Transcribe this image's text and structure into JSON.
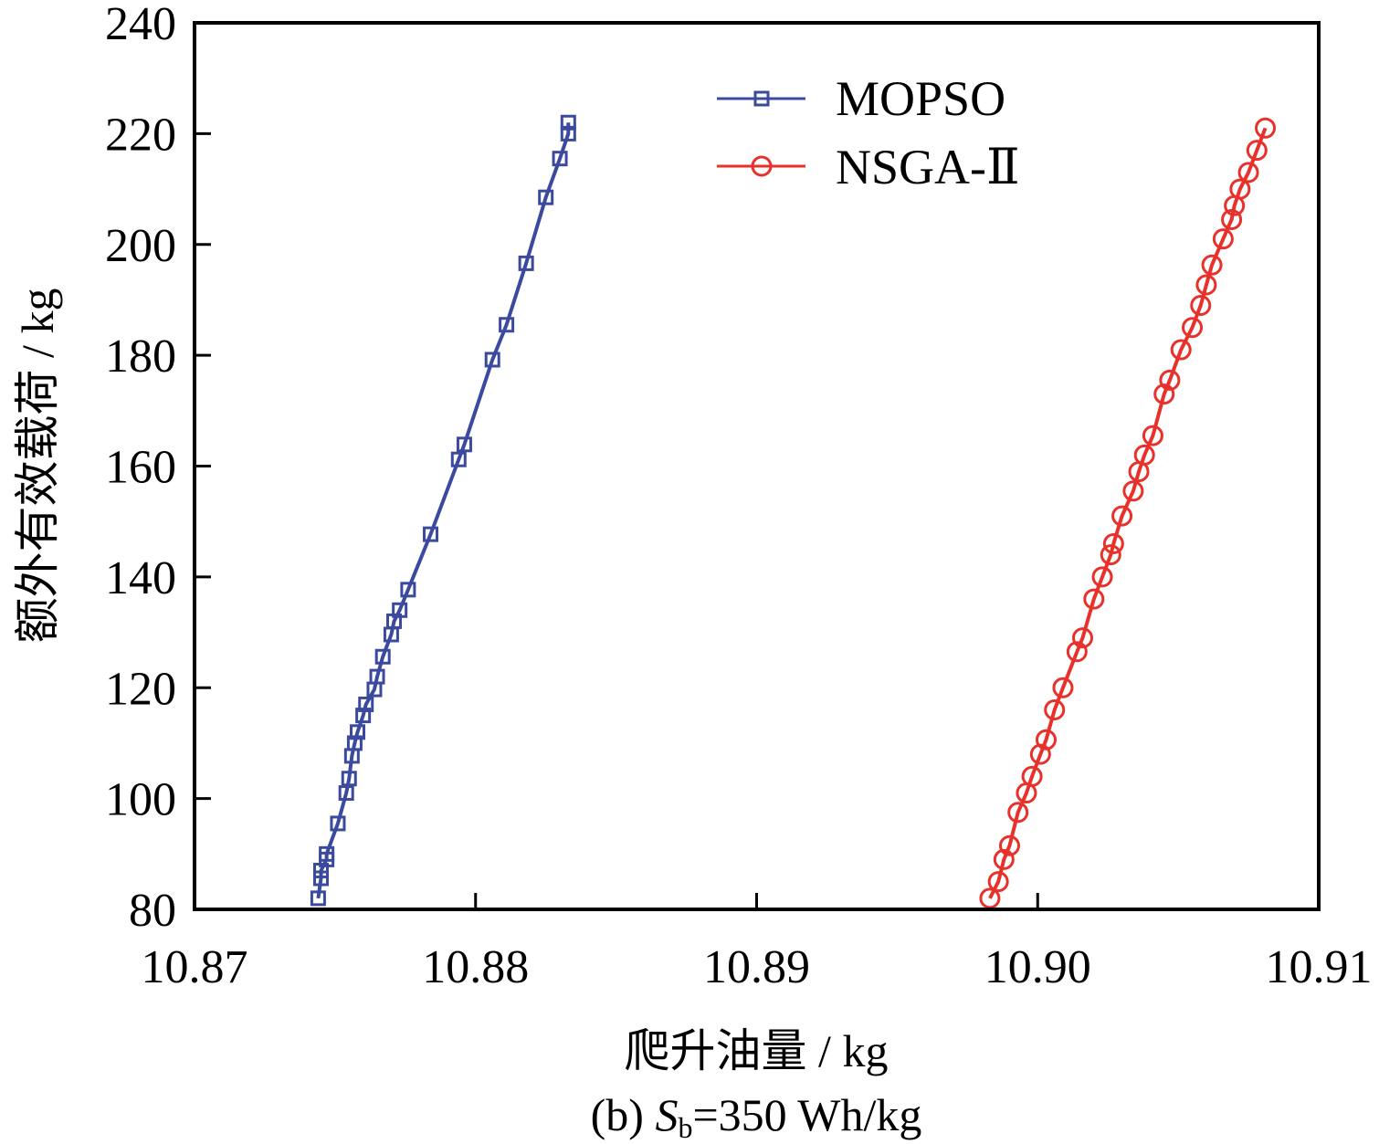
{
  "chart_data": {
    "type": "line",
    "title": "",
    "caption": {
      "prefix": "(b) ",
      "symbol": "S",
      "subscript": "b",
      "suffix": "=350 Wh/kg"
    },
    "xlabel": "爬升油量 / kg",
    "ylabel": "额外有效载荷 / kg",
    "xlim": [
      10.87,
      10.91
    ],
    "ylim": [
      80,
      240
    ],
    "xticks": [
      "10.87",
      "10.88",
      "10.89",
      "10.90",
      "10.91"
    ],
    "yticks": [
      "80",
      "100",
      "120",
      "140",
      "160",
      "180",
      "200",
      "220",
      "240"
    ],
    "grid": false,
    "legend_position": "top-right",
    "series": [
      {
        "name": "MOPSO",
        "color": "#3b4a9e",
        "marker": "square",
        "x": [
          10.8744,
          10.8745,
          10.8745,
          10.8747,
          10.8747,
          10.8751,
          10.8754,
          10.8755,
          10.8756,
          10.8757,
          10.8758,
          10.876,
          10.8761,
          10.8764,
          10.8765,
          10.8767,
          10.877,
          10.8771,
          10.8773,
          10.8776,
          10.8784,
          10.8794,
          10.8796,
          10.8806,
          10.8811,
          10.8818,
          10.8825,
          10.883,
          10.8833,
          10.8833
        ],
        "y": [
          82,
          85.6,
          87,
          89,
          90,
          95.5,
          101,
          103.6,
          107.7,
          110,
          112,
          115,
          117,
          119.7,
          122,
          125.6,
          129.6,
          132,
          134,
          137.7,
          147.7,
          161.2,
          163.9,
          179.2,
          185.5,
          196.6,
          208.5,
          215.5,
          220,
          222
        ]
      },
      {
        "name": "NSGA-Ⅱ",
        "color": "#e8312a",
        "marker": "circle",
        "x": [
          10.8983,
          10.8986,
          10.8988,
          10.899,
          10.8993,
          10.8996,
          10.8998,
          10.9001,
          10.9003,
          10.9006,
          10.9009,
          10.9014,
          10.9016,
          10.902,
          10.9023,
          10.9026,
          10.9027,
          10.903,
          10.9034,
          10.9036,
          10.9038,
          10.9041,
          10.9045,
          10.9047,
          10.9051,
          10.9055,
          10.9058,
          10.906,
          10.9062,
          10.9066,
          10.9069,
          10.907,
          10.9072,
          10.9075,
          10.9078,
          10.9081
        ],
        "y": [
          82,
          85,
          89,
          91.5,
          97.5,
          101,
          104,
          108,
          110.6,
          116,
          120,
          126.5,
          129,
          136,
          140,
          144,
          146,
          151,
          155.5,
          159,
          162,
          165.5,
          173,
          175.5,
          181,
          185,
          189,
          192.7,
          196.3,
          201,
          204.5,
          207,
          210,
          213,
          217,
          221
        ]
      }
    ]
  }
}
